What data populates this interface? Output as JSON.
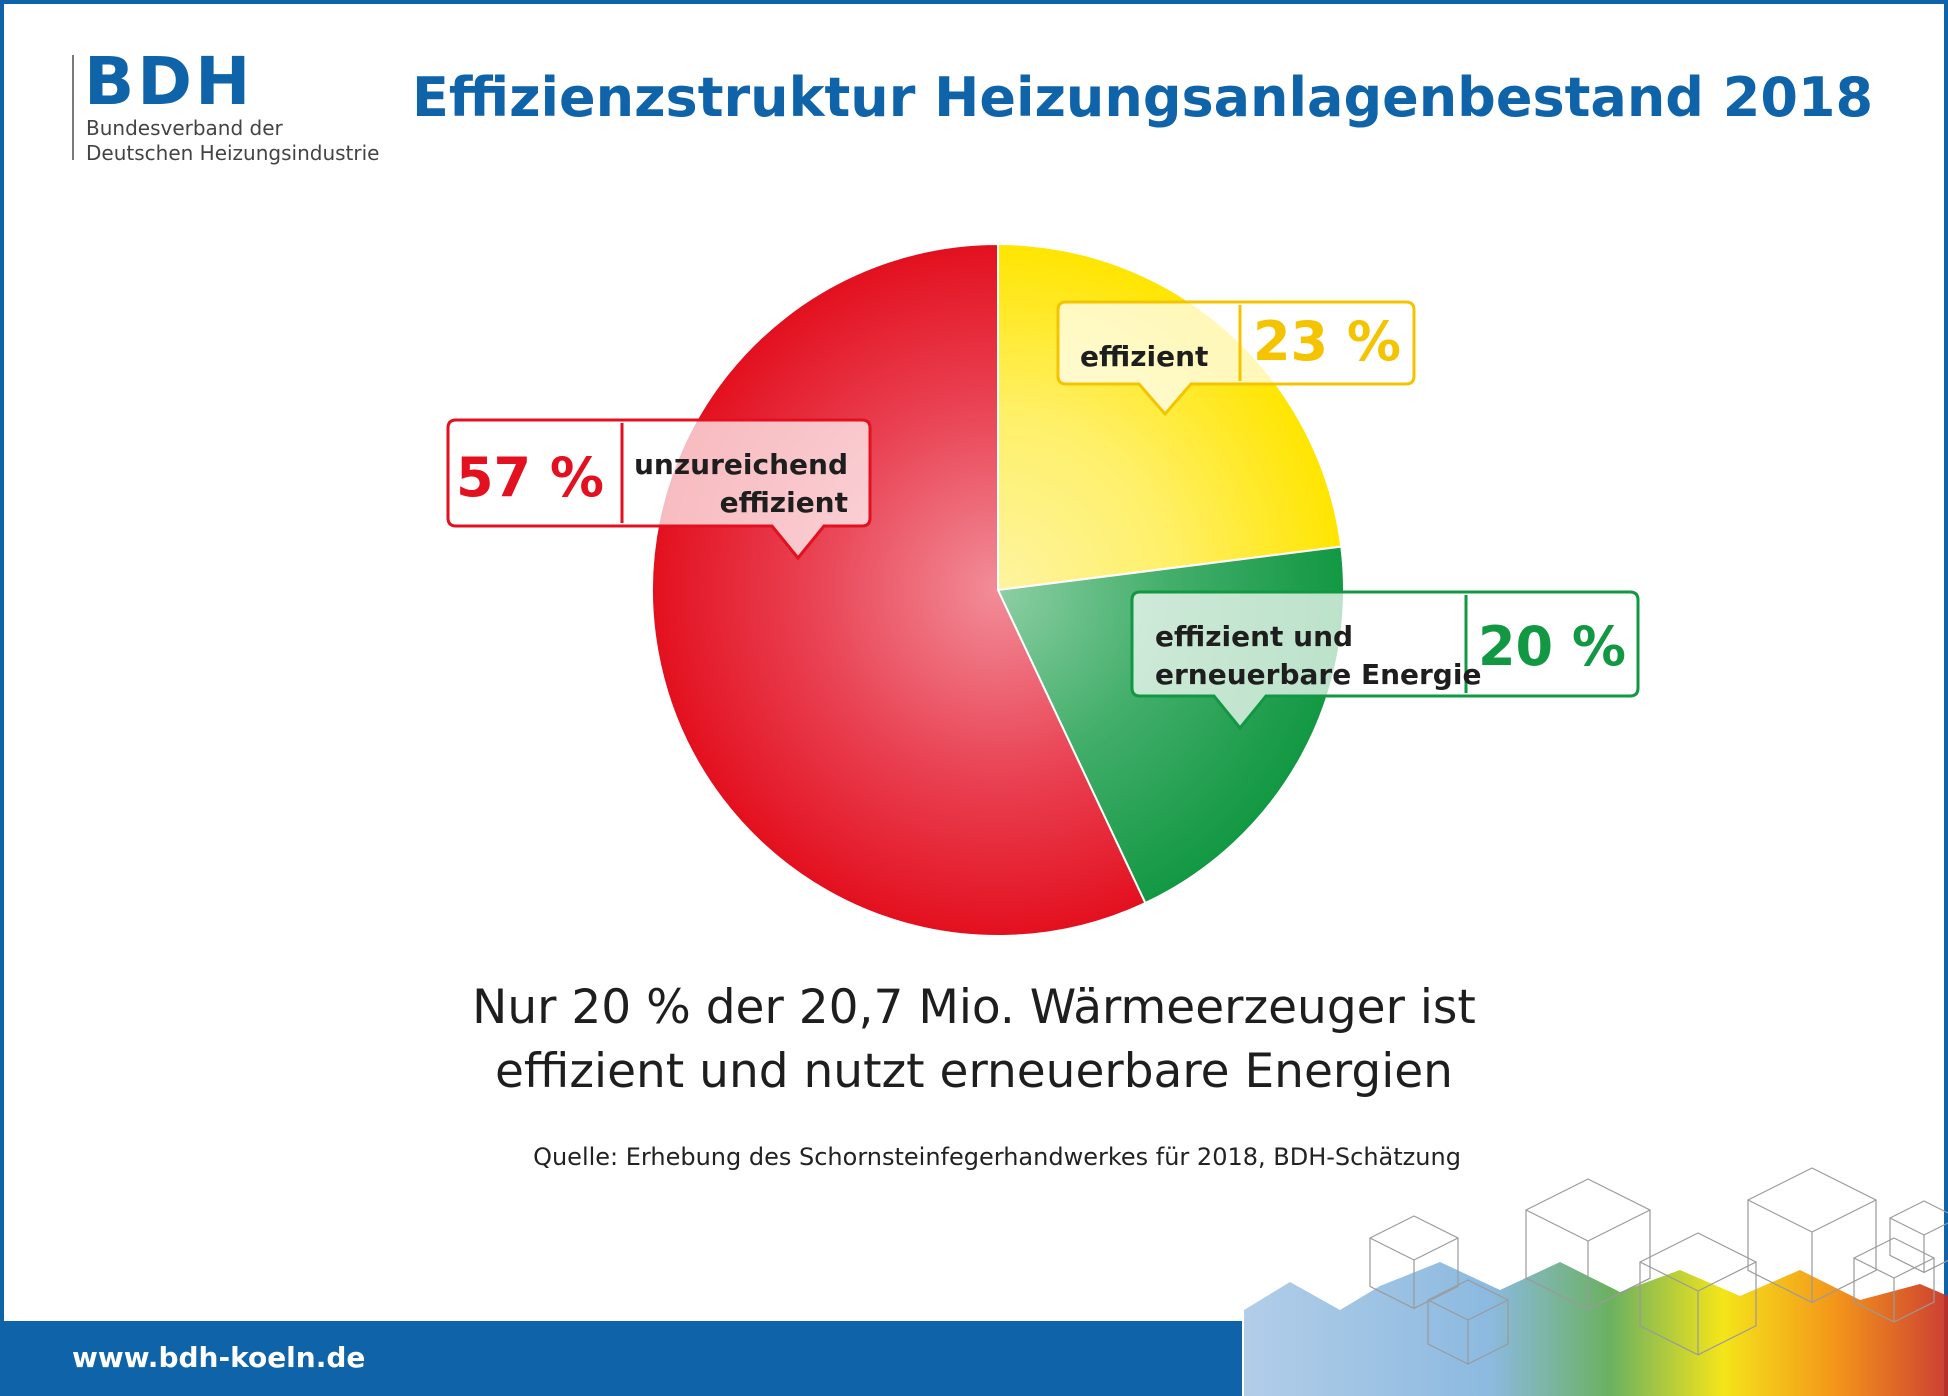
{
  "logo": {
    "mark": "BDH",
    "line1": "Bundesverband der",
    "line2": "Deutschen Heizungsindustrie"
  },
  "title": "Effizienzstruktur Heizungsanlagenbestand 2018",
  "headline": {
    "line1": "Nur 20 % der 20,7 Mio. Wärmeerzeuger ist",
    "line2": "effizient und nutzt erneuerbare Energien"
  },
  "source": "Quelle: Erhebung des Schornsteinfegerhandwerkes für 2018, BDH-Schätzung",
  "footer_url": "www.bdh-koeln.de",
  "colors": {
    "brand_blue": "#0f63a8",
    "red": "#e3101f",
    "yellow": "#ffe500",
    "green": "#129843"
  },
  "chart_data": {
    "type": "pie",
    "title": "Effizienzstruktur Heizungsanlagenbestand 2018",
    "unit": "%",
    "slices": [
      {
        "label_lines": [
          "effizient"
        ],
        "value": 23,
        "value_label": "23 %",
        "color": "#ffe500",
        "text_color": "#f5c400"
      },
      {
        "label_lines": [
          "effizient und",
          "erneuerbare Energie"
        ],
        "value": 20,
        "value_label": "20 %",
        "color": "#129843",
        "text_color": "#129843"
      },
      {
        "label_lines": [
          "unzureichend",
          "effizient"
        ],
        "value": 57,
        "value_label": "57 %",
        "color": "#e3101f",
        "text_color": "#e3101f"
      }
    ]
  }
}
